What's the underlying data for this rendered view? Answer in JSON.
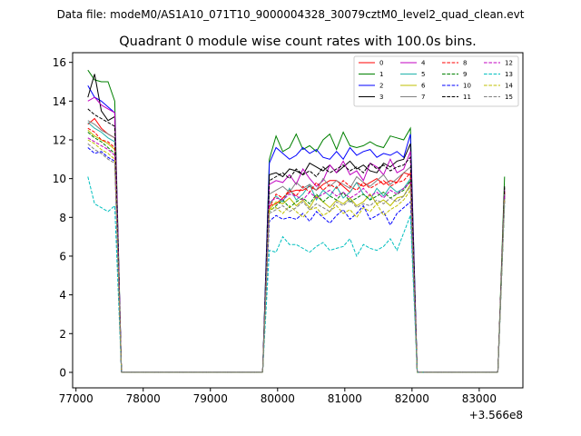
{
  "suptitle": "Data file: modeM0/AS1A10_071T10_9000004328_30079cztM0_level2_quad_clean.evt",
  "chart_data": {
    "type": "line",
    "title": "Quadrant 0 module wise count rates with 100.0s bins.",
    "xlabel": "",
    "ylabel": "",
    "offset_label": "+3.566e8",
    "x_offset": 356600000,
    "xlim": [
      76950,
      83650
    ],
    "ylim": [
      -0.8,
      16.5
    ],
    "xticks": [
      77000,
      78000,
      79000,
      80000,
      81000,
      82000,
      83000
    ],
    "xtick_labels": [
      "77000",
      "78000",
      "79000",
      "80000",
      "81000",
      "82000",
      "83000"
    ],
    "yticks": [
      0,
      2,
      4,
      6,
      8,
      10,
      12,
      14,
      16
    ],
    "ytick_labels": [
      "0",
      "2",
      "4",
      "6",
      "8",
      "10",
      "12",
      "14",
      "16"
    ],
    "grid": false,
    "legend_position": "upper right",
    "legend_columns": 4,
    "segments": [
      {
        "start": 77177,
        "end": 77577,
        "tail": [
          77677
        ]
      },
      {
        "start": 79877,
        "end": 81977,
        "head": [
          79777
        ],
        "tail": [
          82077,
          82177
        ]
      },
      {
        "start": 83377,
        "end": 83377,
        "head": [
          83277
        ]
      }
    ],
    "zero_runs": [
      {
        "from": 77677,
        "to": 79777
      },
      {
        "from": 82177,
        "to": 83277
      }
    ],
    "series": [
      {
        "name": "0",
        "color": "#ff0000",
        "dash": "solid",
        "seg1": [
          12.8,
          13.1,
          12.6,
          12.3,
          12.1
        ],
        "seg2": [
          8.6,
          8.7,
          9.0,
          9.3,
          9.4,
          9.4,
          9.6,
          9.4,
          9.7,
          9.9,
          9.9,
          9.6,
          9.3,
          9.8,
          9.6,
          9.8,
          10.0,
          9.7,
          9.9,
          9.8,
          10.3,
          10.2
        ],
        "seg3": [
          9.3
        ]
      },
      {
        "name": "1",
        "color": "#008000",
        "dash": "solid",
        "seg1": [
          15.6,
          15.1,
          15.0,
          15.0,
          14.0
        ],
        "seg2": [
          11.0,
          12.2,
          11.4,
          11.6,
          12.3,
          11.5,
          11.7,
          11.4,
          12.0,
          12.3,
          11.5,
          12.4,
          11.7,
          11.6,
          11.7,
          11.9,
          11.7,
          11.6,
          12.2,
          12.1,
          12.0,
          12.6
        ],
        "seg3": [
          10.1
        ]
      },
      {
        "name": "2",
        "color": "#0000ff",
        "dash": "solid",
        "seg1": [
          14.8,
          14.2,
          14.0,
          13.7,
          13.4
        ],
        "seg2": [
          10.8,
          11.6,
          11.3,
          11.0,
          11.2,
          11.6,
          11.3,
          11.5,
          11.1,
          11.0,
          11.4,
          11.0,
          11.6,
          11.2,
          11.4,
          11.5,
          11.1,
          11.3,
          11.2,
          11.4,
          11.1,
          12.3
        ],
        "seg3": [
          9.2
        ]
      },
      {
        "name": "3",
        "color": "#000000",
        "dash": "solid",
        "seg1": [
          14.2,
          15.4,
          13.5,
          13.0,
          13.2
        ],
        "seg2": [
          10.2,
          10.3,
          10.1,
          10.5,
          10.4,
          10.2,
          10.8,
          10.6,
          10.4,
          10.7,
          10.3,
          10.6,
          10.9,
          10.5,
          10.7,
          10.4,
          10.3,
          10.8,
          10.6,
          10.9,
          11.0,
          11.8
        ],
        "seg3": [
          9.6
        ]
      },
      {
        "name": "4",
        "color": "#c000c0",
        "dash": "solid",
        "seg1": [
          14.0,
          14.2,
          13.8,
          13.6,
          13.4
        ],
        "seg2": [
          9.7,
          9.9,
          9.8,
          10.2,
          9.7,
          10.5,
          10.0,
          9.6,
          9.9,
          10.7,
          10.3,
          10.9,
          10.2,
          10.4,
          9.9,
          10.8,
          10.6,
          10.2,
          11.0,
          10.3,
          10.5,
          11.4
        ],
        "seg3": [
          9.4
        ]
      },
      {
        "name": "5",
        "color": "#20b2aa",
        "dash": "solid",
        "seg1": [
          12.9,
          12.6,
          12.4,
          12.1,
          11.9
        ],
        "seg2": [
          8.7,
          9.1,
          8.8,
          9.5,
          8.9,
          9.2,
          9.7,
          8.9,
          9.4,
          9.1,
          9.6,
          9.0,
          9.3,
          9.8,
          9.2,
          8.9,
          9.5,
          9.1,
          9.6,
          9.3,
          9.5,
          10.0
        ],
        "seg3": [
          9.1
        ]
      },
      {
        "name": "6",
        "color": "#bfbf00",
        "dash": "solid",
        "seg1": [
          12.5,
          12.2,
          12.0,
          11.8,
          11.5
        ],
        "seg2": [
          8.4,
          8.8,
          8.7,
          9.0,
          8.6,
          8.9,
          8.5,
          9.1,
          8.8,
          8.5,
          8.9,
          8.7,
          9.0,
          8.6,
          8.8,
          9.2,
          8.7,
          8.9,
          8.6,
          9.0,
          9.1,
          9.7
        ],
        "seg3": [
          9.0
        ]
      },
      {
        "name": "7",
        "color": "#808080",
        "dash": "solid",
        "seg1": [
          13.0,
          12.8,
          12.5,
          12.3,
          12.1
        ],
        "seg2": [
          9.2,
          9.4,
          9.6,
          9.3,
          9.8,
          9.5,
          9.7,
          9.4,
          10.0,
          9.6,
          9.9,
          9.7,
          9.5,
          10.1,
          9.8,
          9.6,
          9.9,
          10.2,
          9.7,
          10.0,
          10.3,
          10.6
        ],
        "seg3": [
          9.2
        ]
      },
      {
        "name": "8",
        "color": "#ff0000",
        "dash": "dashed",
        "seg1": [
          12.6,
          12.4,
          12.0,
          11.9,
          11.6
        ],
        "seg2": [
          8.5,
          9.2,
          9.0,
          9.4,
          9.1,
          9.6,
          9.3,
          9.8,
          9.4,
          9.7,
          9.5,
          9.9,
          9.6,
          9.4,
          9.8,
          9.5,
          9.7,
          9.9,
          9.6,
          9.8,
          9.9,
          10.3
        ],
        "seg3": [
          9.3
        ]
      },
      {
        "name": "9",
        "color": "#008000",
        "dash": "dashed",
        "seg1": [
          12.4,
          12.1,
          11.9,
          11.6,
          11.3
        ],
        "seg2": [
          8.3,
          8.6,
          8.9,
          8.5,
          8.8,
          9.0,
          8.7,
          9.2,
          8.8,
          9.1,
          8.9,
          9.3,
          8.8,
          9.0,
          9.2,
          8.9,
          9.1,
          9.3,
          9.0,
          9.2,
          9.4,
          9.9
        ],
        "seg3": [
          9.0
        ]
      },
      {
        "name": "10",
        "color": "#0000ff",
        "dash": "dashed",
        "seg1": [
          11.6,
          11.3,
          11.4,
          11.1,
          10.9
        ],
        "seg2": [
          7.8,
          8.1,
          7.9,
          8.0,
          7.9,
          8.2,
          7.8,
          8.3,
          8.0,
          7.7,
          8.1,
          8.4,
          7.9,
          8.2,
          8.6,
          7.9,
          8.1,
          8.3,
          7.6,
          8.2,
          8.5,
          8.8
        ],
        "seg3": [
          8.9
        ]
      },
      {
        "name": "11",
        "color": "#000000",
        "dash": "dashed",
        "seg1": [
          13.6,
          13.3,
          13.1,
          12.9,
          12.7
        ],
        "seg2": [
          9.9,
          10.1,
          10.3,
          10.0,
          10.5,
          10.2,
          10.4,
          10.1,
          10.6,
          10.3,
          10.5,
          10.7,
          10.4,
          10.6,
          10.3,
          10.8,
          10.5,
          10.7,
          10.4,
          10.6,
          10.7,
          11.1
        ],
        "seg3": [
          9.5
        ]
      },
      {
        "name": "12",
        "color": "#c000c0",
        "dash": "dashed",
        "seg1": [
          12.1,
          11.9,
          11.7,
          11.5,
          11.2
        ],
        "seg2": [
          8.8,
          9.0,
          8.9,
          9.2,
          9.1,
          8.9,
          9.3,
          9.0,
          9.2,
          9.4,
          9.1,
          9.3,
          9.0,
          9.2,
          9.5,
          9.1,
          9.3,
          9.0,
          9.4,
          9.2,
          9.5,
          9.8
        ],
        "seg3": [
          9.1
        ]
      },
      {
        "name": "13",
        "color": "#00bfbf",
        "dash": "dashed",
        "seg1": [
          10.1,
          8.7,
          8.5,
          8.3,
          8.6
        ],
        "seg2": [
          6.3,
          6.2,
          7.0,
          6.6,
          6.6,
          6.4,
          6.2,
          6.5,
          6.7,
          6.3,
          6.4,
          6.5,
          6.9,
          6.0,
          6.6,
          6.4,
          6.3,
          6.5,
          6.9,
          6.3,
          7.2,
          8.1
        ],
        "seg3": [
          8.7
        ]
      },
      {
        "name": "14",
        "color": "#bfbf00",
        "dash": "dashed",
        "seg1": [
          12.0,
          11.8,
          11.5,
          11.3,
          11.0
        ],
        "seg2": [
          8.4,
          8.5,
          8.2,
          8.6,
          8.3,
          8.0,
          8.4,
          8.5,
          8.1,
          8.3,
          8.6,
          8.2,
          8.4,
          8.0,
          8.5,
          8.3,
          8.7,
          8.1,
          8.4,
          8.6,
          8.9,
          9.4
        ],
        "seg3": [
          8.9
        ]
      },
      {
        "name": "15",
        "color": "#808080",
        "dash": "dashed",
        "seg1": [
          11.8,
          11.5,
          11.3,
          11.0,
          10.8
        ],
        "seg2": [
          8.2,
          8.4,
          8.6,
          8.3,
          8.5,
          8.8,
          8.4,
          8.7,
          8.5,
          8.3,
          8.8,
          8.6,
          8.9,
          8.5,
          8.7,
          8.6,
          8.9,
          8.7,
          9.0,
          8.8,
          9.1,
          9.6
        ],
        "seg3": [
          8.8
        ]
      }
    ]
  }
}
